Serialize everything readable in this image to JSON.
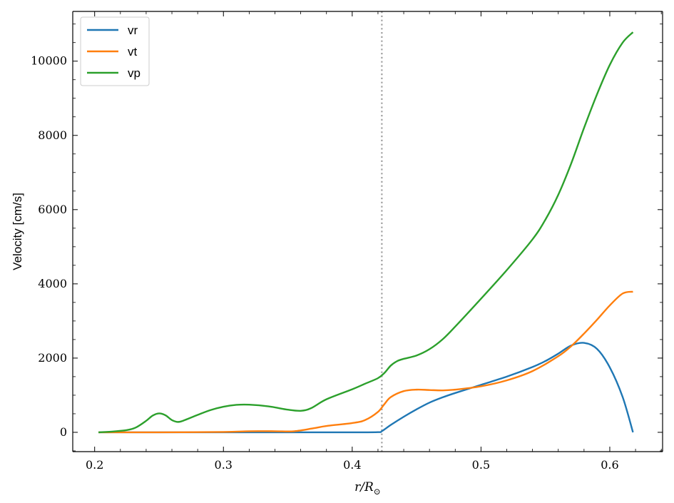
{
  "chart_data": {
    "type": "line",
    "ylabel": "Velocity [cm/s]",
    "xlabel_main": "r/R",
    "xlabel_sub": "⊙",
    "xlim": [
      0.183,
      0.641
    ],
    "ylim": [
      -520,
      11340
    ],
    "xticks": [
      0.2,
      0.3,
      0.4,
      0.5,
      0.6
    ],
    "xtick_labels": [
      "0.2",
      "0.3",
      "0.4",
      "0.5",
      "0.6"
    ],
    "yticks": [
      0,
      2000,
      4000,
      6000,
      8000,
      10000
    ],
    "ytick_labels": [
      "0",
      "2000",
      "4000",
      "6000",
      "8000",
      "10000"
    ],
    "vline_x": 0.423,
    "vline_style": "dotted",
    "legend_position": "top-left",
    "series": [
      {
        "name": "vr",
        "color": "#1f77b4",
        "points": [
          [
            0.203,
            0
          ],
          [
            0.25,
            0
          ],
          [
            0.3,
            0
          ],
          [
            0.35,
            0
          ],
          [
            0.4,
            0
          ],
          [
            0.42,
            5
          ],
          [
            0.423,
            30
          ],
          [
            0.43,
            200
          ],
          [
            0.44,
            420
          ],
          [
            0.45,
            620
          ],
          [
            0.46,
            800
          ],
          [
            0.47,
            940
          ],
          [
            0.48,
            1060
          ],
          [
            0.5,
            1280
          ],
          [
            0.52,
            1500
          ],
          [
            0.54,
            1760
          ],
          [
            0.55,
            1920
          ],
          [
            0.56,
            2120
          ],
          [
            0.57,
            2340
          ],
          [
            0.58,
            2410
          ],
          [
            0.59,
            2250
          ],
          [
            0.6,
            1750
          ],
          [
            0.61,
            950
          ],
          [
            0.618,
            0
          ]
        ]
      },
      {
        "name": "vt",
        "color": "#ff7f0e",
        "points": [
          [
            0.203,
            0
          ],
          [
            0.25,
            0
          ],
          [
            0.3,
            10
          ],
          [
            0.32,
            30
          ],
          [
            0.34,
            30
          ],
          [
            0.355,
            30
          ],
          [
            0.37,
            110
          ],
          [
            0.38,
            170
          ],
          [
            0.4,
            250
          ],
          [
            0.41,
            330
          ],
          [
            0.42,
            550
          ],
          [
            0.425,
            760
          ],
          [
            0.43,
            950
          ],
          [
            0.44,
            1110
          ],
          [
            0.45,
            1150
          ],
          [
            0.46,
            1140
          ],
          [
            0.47,
            1130
          ],
          [
            0.48,
            1150
          ],
          [
            0.5,
            1240
          ],
          [
            0.52,
            1400
          ],
          [
            0.54,
            1650
          ],
          [
            0.56,
            2050
          ],
          [
            0.57,
            2320
          ],
          [
            0.58,
            2660
          ],
          [
            0.59,
            3030
          ],
          [
            0.6,
            3420
          ],
          [
            0.61,
            3740
          ],
          [
            0.618,
            3790
          ]
        ]
      },
      {
        "name": "vp",
        "color": "#2ca02c",
        "points": [
          [
            0.203,
            0
          ],
          [
            0.215,
            25
          ],
          [
            0.225,
            60
          ],
          [
            0.232,
            130
          ],
          [
            0.24,
            310
          ],
          [
            0.245,
            450
          ],
          [
            0.25,
            510
          ],
          [
            0.255,
            460
          ],
          [
            0.26,
            330
          ],
          [
            0.265,
            280
          ],
          [
            0.27,
            330
          ],
          [
            0.28,
            470
          ],
          [
            0.29,
            600
          ],
          [
            0.3,
            690
          ],
          [
            0.31,
            740
          ],
          [
            0.32,
            745
          ],
          [
            0.335,
            700
          ],
          [
            0.35,
            610
          ],
          [
            0.36,
            580
          ],
          [
            0.368,
            650
          ],
          [
            0.38,
            890
          ],
          [
            0.4,
            1160
          ],
          [
            0.41,
            1310
          ],
          [
            0.42,
            1460
          ],
          [
            0.425,
            1600
          ],
          [
            0.43,
            1800
          ],
          [
            0.435,
            1920
          ],
          [
            0.44,
            1980
          ],
          [
            0.45,
            2070
          ],
          [
            0.46,
            2240
          ],
          [
            0.47,
            2500
          ],
          [
            0.48,
            2850
          ],
          [
            0.5,
            3600
          ],
          [
            0.52,
            4370
          ],
          [
            0.54,
            5200
          ],
          [
            0.55,
            5730
          ],
          [
            0.56,
            6400
          ],
          [
            0.57,
            7240
          ],
          [
            0.58,
            8200
          ],
          [
            0.59,
            9100
          ],
          [
            0.6,
            9900
          ],
          [
            0.61,
            10500
          ],
          [
            0.618,
            10780
          ]
        ]
      }
    ]
  }
}
